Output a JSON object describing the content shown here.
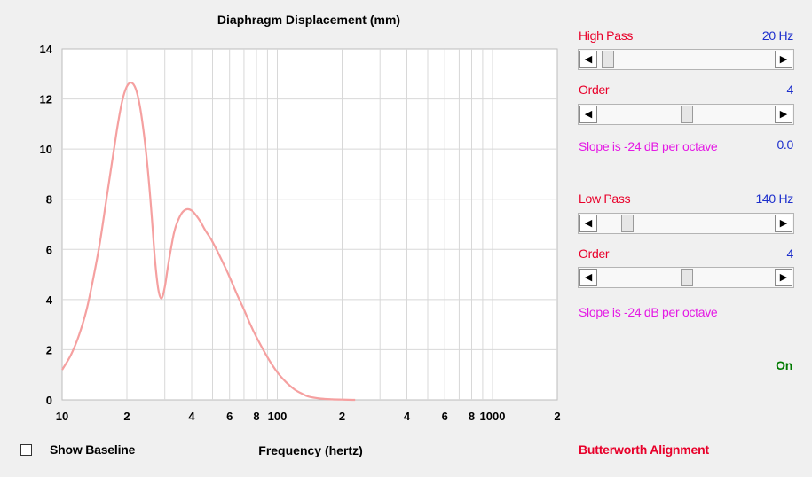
{
  "chart_data": {
    "type": "line",
    "title": "Diaphragm Displacement (mm)",
    "xlabel": "Frequency (hertz)",
    "ylabel": "",
    "xscale": "log",
    "xlim": [
      10,
      2000
    ],
    "ylim": [
      0,
      14
    ],
    "yticks": [
      0,
      2,
      4,
      6,
      8,
      10,
      12,
      14
    ],
    "xtick_labels": [
      {
        "value": 10,
        "label": "10"
      },
      {
        "value": 20,
        "label": "2"
      },
      {
        "value": 40,
        "label": "4"
      },
      {
        "value": 60,
        "label": "6"
      },
      {
        "value": 80,
        "label": "8"
      },
      {
        "value": 100,
        "label": "100"
      },
      {
        "value": 200,
        "label": "2"
      },
      {
        "value": 400,
        "label": "4"
      },
      {
        "value": 600,
        "label": "6"
      },
      {
        "value": 800,
        "label": "8"
      },
      {
        "value": 1000,
        "label": "1000"
      },
      {
        "value": 2000,
        "label": "2"
      }
    ],
    "grid": true,
    "series": [
      {
        "color": "#f5a0a0",
        "x": [
          10,
          11,
          12,
          13,
          14,
          15,
          16,
          17,
          18,
          19,
          20,
          21,
          22,
          23,
          24,
          25,
          26,
          27,
          28,
          29,
          30,
          31,
          32,
          33,
          34,
          36,
          38,
          40,
          42,
          44,
          46,
          48,
          50,
          55,
          60,
          65,
          70,
          75,
          80,
          90,
          100,
          110,
          120,
          130,
          140,
          160,
          180,
          200,
          230
        ],
        "y": [
          1.2,
          1.8,
          2.6,
          3.6,
          4.9,
          6.3,
          7.9,
          9.4,
          10.8,
          11.9,
          12.5,
          12.65,
          12.4,
          11.7,
          10.6,
          9.2,
          7.5,
          5.6,
          4.4,
          4.05,
          4.5,
          5.3,
          6.0,
          6.6,
          7.0,
          7.45,
          7.6,
          7.55,
          7.35,
          7.1,
          6.8,
          6.55,
          6.3,
          5.6,
          4.9,
          4.2,
          3.6,
          3.0,
          2.5,
          1.7,
          1.1,
          0.7,
          0.42,
          0.25,
          0.13,
          0.05,
          0.02,
          0.01,
          0.0
        ]
      }
    ]
  },
  "controls": {
    "high_pass": {
      "label": "High Pass",
      "value": "20 Hz",
      "position": 0.02
    },
    "high_order": {
      "label": "Order",
      "value": "4",
      "position": 0.5
    },
    "high_slope": {
      "text": "Slope is -24 dB per octave",
      "value": "0.0"
    },
    "low_pass": {
      "label": "Low Pass",
      "value": "140 Hz",
      "position": 0.14
    },
    "low_order": {
      "label": "Order",
      "value": "4",
      "position": 0.5
    },
    "low_slope": {
      "text": "Slope is -24 dB per octave"
    },
    "status": "On",
    "alignment": "Butterworth Alignment"
  },
  "footer": {
    "show_baseline_label": "Show Baseline",
    "show_baseline_checked": false
  },
  "colors": {
    "curve": "#f5a0a0",
    "red_label": "#e8002a",
    "blue_value": "#1c2ecc",
    "magenta_text": "#e41ae4",
    "green_status": "#007a00"
  },
  "icons": {
    "scroll_left": "left-arrow-icon",
    "scroll_right": "right-arrow-icon"
  }
}
